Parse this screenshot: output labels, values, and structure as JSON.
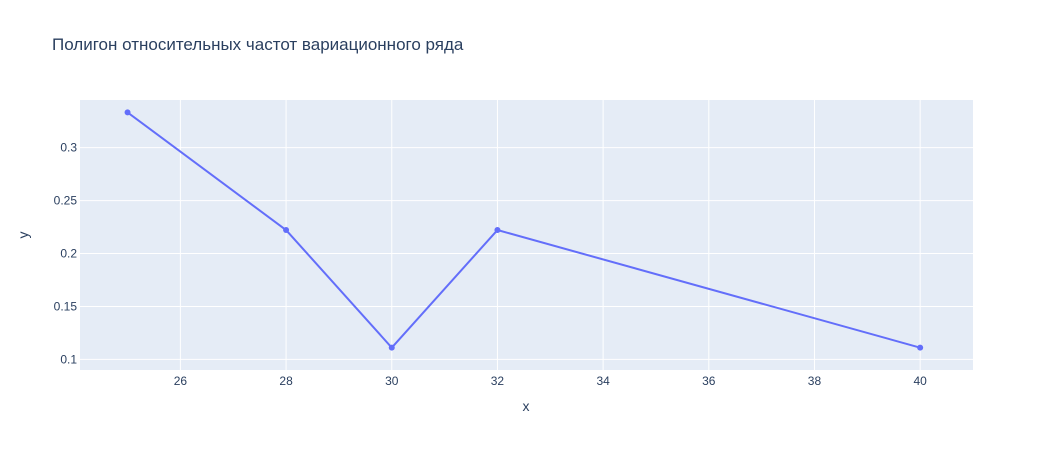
{
  "chart_data": {
    "type": "line",
    "title": "Полигон относительных частот вариационного ряда",
    "xlabel": "x",
    "ylabel": "y",
    "xlim": [
      24.1,
      41
    ],
    "ylim": [
      0.09,
      0.345
    ],
    "x_ticks": [
      "26",
      "28",
      "30",
      "32",
      "34",
      "36",
      "38",
      "40"
    ],
    "y_ticks": [
      "0.1",
      "0.15",
      "0.2",
      "0.25",
      "0.3"
    ],
    "grid": true,
    "legend": "none",
    "series": [
      {
        "x": [
          25,
          28,
          30,
          32,
          40
        ],
        "y": [
          0.3333,
          0.2222,
          0.1111,
          0.2222,
          0.1111
        ],
        "color": "#636efa",
        "mode": "lines+markers"
      }
    ],
    "colors": {
      "plot_bg": "#e5ecf6",
      "grid": "#ffffff",
      "text": "#2a3f5f",
      "line": "#636efa"
    }
  }
}
